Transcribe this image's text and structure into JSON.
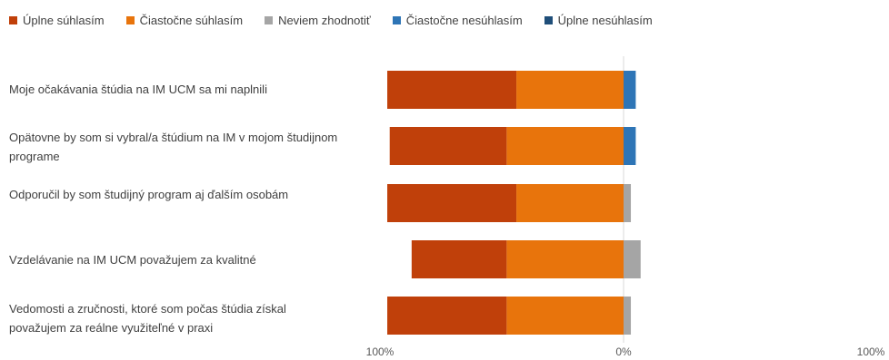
{
  "chart_data": {
    "type": "bar",
    "orientation": "horizontal-diverging",
    "legend_position": "top-left",
    "grid": false,
    "series": [
      {
        "name": "Úplne súhlasím",
        "color": "#c0400a",
        "values": [
          53,
          48,
          53,
          39,
          49
        ]
      },
      {
        "name": "Čiastočne súhlasím",
        "color": "#e8740c",
        "values": [
          44,
          48,
          44,
          48,
          48
        ]
      },
      {
        "name": "Neviem zhodnotiť",
        "color": "#a5a5a5",
        "values": [
          0,
          0,
          3,
          7,
          3
        ]
      },
      {
        "name": "Čiastočne nesúhlasím",
        "color": "#2e75b6",
        "values": [
          5,
          5,
          0,
          0,
          0
        ]
      },
      {
        "name": "Úplne nesúhlasím",
        "color": "#1f4e79",
        "values": [
          0,
          0,
          0,
          0,
          0
        ]
      }
    ],
    "categories": [
      "Moje očakávania štúdia na IM UCM sa mi naplnili",
      "Opätovne by som si vybral/a štúdium na IM v mojom študijnom programe",
      "Odporučil by som študijný program aj ďalším osobám",
      "Vzdelávanie na IM UCM považujem za kvalitné",
      "Vedomosti a zručnosti, ktoré som počas štúdia získal považujem za reálne využiteľné v praxi"
    ],
    "x_ticks": [
      "100%",
      "0%",
      "100%"
    ],
    "xlim": [
      -100,
      100
    ]
  }
}
